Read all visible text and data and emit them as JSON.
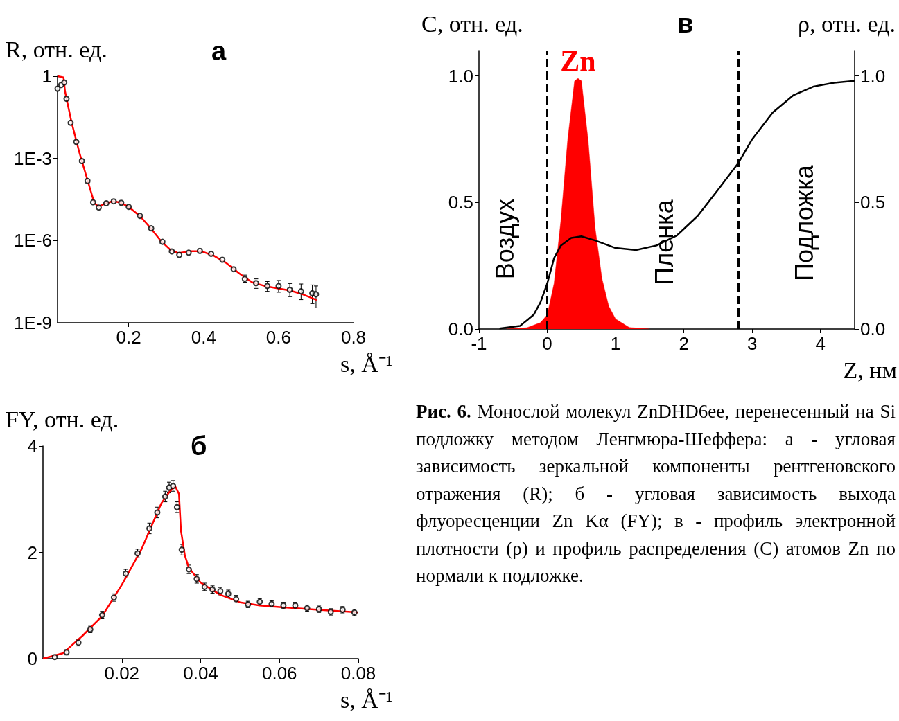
{
  "chart_data": [
    {
      "type": "scatter",
      "title": "а",
      "xlabel": "s, Å⁻¹",
      "ylabel": "R, отн. ед.",
      "log": "y",
      "xlim": [
        0.01,
        0.8
      ],
      "xticks": [
        0.2,
        0.4,
        0.6,
        0.8
      ],
      "ylim": [
        1e-09,
        1
      ],
      "yticks": [
        {
          "value": 1e-09,
          "label": "1E-9"
        },
        {
          "value": 1e-06,
          "label": "1E-6"
        },
        {
          "value": 0.001,
          "label": "1E-3"
        },
        1
      ],
      "grid": false,
      "series": [
        {
          "type": "scatter",
          "marker": "circle",
          "color": "#000000",
          "x": [
            0.01,
            0.02,
            0.028,
            0.034,
            0.045,
            0.06,
            0.075,
            0.09,
            0.105,
            0.12,
            0.14,
            0.16,
            0.18,
            0.2,
            0.23,
            0.26,
            0.29,
            0.315,
            0.335,
            0.36,
            0.39,
            0.42,
            0.45,
            0.48,
            0.51,
            0.54,
            0.57,
            0.6,
            0.63,
            0.66,
            0.69,
            0.7
          ],
          "values": [
            0.35,
            0.48,
            0.59,
            0.15,
            0.02,
            0.004,
            0.0008,
            0.00015,
            2.5e-05,
            1.6e-05,
            2.3e-05,
            2.7e-05,
            2.4e-05,
            1.7e-05,
            8e-06,
            2.8e-06,
            9e-07,
            4e-07,
            3e-07,
            3.6e-07,
            4.2e-07,
            3.3e-07,
            2e-07,
            9e-08,
            4e-08,
            2.8e-08,
            2.2e-08,
            2.2e-08,
            1.6e-08,
            1.4e-08,
            1.2e-08,
            1.1e-08
          ],
          "errors": [
            null,
            null,
            null,
            null,
            null,
            null,
            null,
            null,
            null,
            null,
            null,
            null,
            null,
            null,
            null,
            null,
            null,
            null,
            null,
            null,
            null,
            null,
            null,
            null,
            [
              3e-08,
              5.5e-08
            ],
            [
              1.8e-08,
              4e-08
            ],
            [
              1.4e-08,
              3.2e-08
            ],
            [
              1.3e-08,
              3.5e-08
            ],
            [
              9e-09,
              2.7e-08
            ],
            [
              7e-09,
              2.6e-08
            ],
            [
              5e-09,
              2.4e-08
            ],
            [
              3.5e-09,
              2.2e-08
            ]
          ]
        },
        {
          "type": "line",
          "marker": "none",
          "color": "#ff0000",
          "x": [
            0.01,
            0.026,
            0.03,
            0.047,
            0.068,
            0.088,
            0.108,
            0.119,
            0.136,
            0.156,
            0.176,
            0.2,
            0.231,
            0.258,
            0.285,
            0.312,
            0.332,
            0.366,
            0.393,
            0.427,
            0.461,
            0.495,
            0.529,
            0.563,
            0.597,
            0.631,
            0.664,
            0.702
          ],
          "values": [
            1,
            0.9,
            0.28,
            0.022,
            0.0017,
            0.0002,
            2.4e-05,
            1.7e-05,
            2.2e-05,
            2.7e-05,
            2.5e-05,
            1.7e-05,
            7.6e-06,
            2.9e-06,
            1e-06,
            4.5e-07,
            3.5e-07,
            4.1e-07,
            4.1e-07,
            2.8e-07,
            1.5e-07,
            6.3e-08,
            3e-08,
            2.2e-08,
            1.8e-08,
            1.5e-08,
            1.1e-08,
            6.8e-09
          ]
        }
      ]
    },
    {
      "type": "area",
      "title": "в",
      "xlabel": "Z, нм",
      "ylabel": "C, отн. ед.",
      "y2label": "ρ, отн. ед.",
      "xlim": [
        -1,
        4.5
      ],
      "xticks": [
        -1,
        0,
        1,
        2,
        3,
        4
      ],
      "ylim": [
        0,
        1.1
      ],
      "yticks": [
        {
          "value": 0,
          "label": "0.0"
        },
        0.5,
        {
          "value": 1,
          "label": "1.0"
        }
      ],
      "y2lim": [
        0,
        1.1
      ],
      "y2ticks": [
        {
          "value": 0,
          "label": "0.0"
        },
        0.5,
        {
          "value": 1,
          "label": "1.0"
        }
      ],
      "grid": false,
      "ref_lines": [
        {
          "axis": "x",
          "value": 0,
          "color": "#000000",
          "line_style": "dashed"
        },
        {
          "axis": "x",
          "value": 2.8,
          "color": "#000000",
          "line_style": "dashed"
        }
      ],
      "annotations": [
        "Воздух",
        "Пленка",
        "Подложка"
      ],
      "series": [
        {
          "type": "area",
          "name": "Zn",
          "color": "#ff0000",
          "x": [
            -0.6,
            -0.3,
            -0.1,
            0,
            0.1,
            0.2,
            0.3,
            0.4,
            0.45,
            0.5,
            0.6,
            0.7,
            0.8,
            0.9,
            1,
            1.2,
            1.5
          ],
          "values": [
            0,
            0.005,
            0.025,
            0.056,
            0.18,
            0.43,
            0.75,
            0.98,
            0.99,
            0.98,
            0.74,
            0.4,
            0.2,
            0.09,
            0.04,
            0.006,
            0
          ]
        },
        {
          "type": "line",
          "axis": "y2",
          "marker": "none",
          "color": "#000000",
          "x": [
            -0.7,
            -0.4,
            -0.2,
            -0.1,
            0,
            0.1,
            0.2,
            0.35,
            0.5,
            0.7,
            1,
            1.3,
            1.6,
            1.9,
            2.2,
            2.5,
            2.8,
            3,
            3.3,
            3.6,
            3.9,
            4.2,
            4.5
          ],
          "values": [
            0.002,
            0.012,
            0.056,
            0.105,
            0.18,
            0.28,
            0.33,
            0.36,
            0.366,
            0.35,
            0.32,
            0.312,
            0.33,
            0.37,
            0.446,
            0.55,
            0.657,
            0.75,
            0.855,
            0.923,
            0.958,
            0.973,
            0.98
          ]
        }
      ]
    },
    {
      "type": "scatter",
      "title": "б",
      "xlabel": "s, Å⁻¹",
      "ylabel": "FY, отн. ед.",
      "xlim": [
        0,
        0.08
      ],
      "xticks": [
        0.02,
        0.04,
        0.06,
        0.08
      ],
      "ylim": [
        0,
        4
      ],
      "yticks": [
        0,
        2,
        4
      ],
      "grid": false,
      "series": [
        {
          "type": "scatter",
          "marker": "circle",
          "color": "#000000",
          "x": [
            0.003,
            0.006,
            0.009,
            0.012,
            0.015,
            0.018,
            0.021,
            0.024,
            0.027,
            0.029,
            0.031,
            0.032,
            0.033,
            0.034,
            0.0352,
            0.037,
            0.039,
            0.041,
            0.043,
            0.045,
            0.047,
            0.049,
            0.052,
            0.055,
            0.058,
            0.061,
            0.064,
            0.067,
            0.07,
            0.073,
            0.076,
            0.079
          ],
          "values": [
            0.03,
            0.12,
            0.3,
            0.55,
            0.82,
            1.15,
            1.6,
            1.98,
            2.45,
            2.75,
            3.05,
            3.22,
            3.25,
            2.85,
            2.05,
            1.68,
            1.5,
            1.35,
            1.3,
            1.27,
            1.22,
            1.12,
            1.02,
            1.07,
            1.03,
            1,
            1,
            0.95,
            0.93,
            0.88,
            0.92,
            0.87
          ],
          "errors": [
            null,
            0.05,
            0.06,
            0.06,
            0.07,
            0.07,
            0.08,
            0.08,
            0.1,
            0.1,
            0.1,
            0.1,
            0.1,
            0.1,
            0.1,
            0.08,
            0.08,
            0.07,
            0.07,
            0.07,
            0.07,
            0.07,
            0.06,
            0.06,
            0.06,
            0.06,
            0.06,
            0.06,
            0.06,
            0.06,
            0.06,
            0.06
          ]
        },
        {
          "type": "line",
          "marker": "none",
          "color": "#ff0000",
          "x": [
            0,
            0.005,
            0.01,
            0.015,
            0.02,
            0.025,
            0.03,
            0.032,
            0.0335,
            0.0345,
            0.035,
            0.036,
            0.037,
            0.04,
            0.045,
            0.05,
            0.055,
            0.06,
            0.07,
            0.08
          ],
          "values": [
            0,
            0.1,
            0.43,
            0.8,
            1.39,
            2.06,
            2.92,
            3.13,
            3.25,
            3.1,
            2.41,
            1.94,
            1.71,
            1.43,
            1.2,
            1.06,
            1,
            0.97,
            0.92,
            0.87
          ]
        }
      ]
    },
    {
      "type": "other",
      "annotations": [
        "Рис. 6.",
        "Монослой молекул ZnDHD6ee, перенесенный на Si подложку методом Ленгмюра-Шеффера: а - угловая зависимость зеркальной компоненты рентгеновского отражения (R); б - угловая зависимость выхода флуоресценции Zn Kα (FY); в - профиль электронной плотности (ρ) и профиль распределения (C) атомов Zn по нормали к подложке."
      ]
    }
  ]
}
